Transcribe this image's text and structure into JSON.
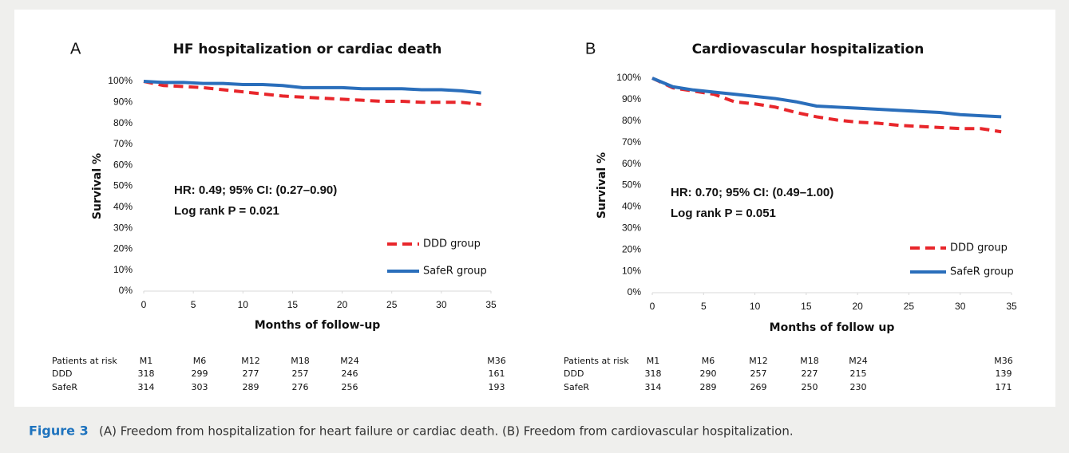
{
  "chart_data": [
    {
      "type": "line",
      "panel": "A",
      "title": "HF hospitalization or cardiac death",
      "xlabel": "Months of follow-up",
      "ylabel": "Survival %",
      "x": [
        0,
        2,
        4,
        6,
        8,
        10,
        12,
        14,
        16,
        18,
        20,
        22,
        24,
        26,
        28,
        30,
        32,
        34
      ],
      "series": [
        {
          "name": "DDD group",
          "color": "#e8262b",
          "linestyle": "dashed",
          "values": [
            100,
            98,
            97.5,
            97,
            96,
            95,
            94,
            93,
            92.5,
            92,
            91.5,
            91,
            90.5,
            90.5,
            90,
            90,
            90,
            89
          ]
        },
        {
          "name": "SafeR group",
          "color": "#2a6ebb",
          "linestyle": "solid",
          "values": [
            100,
            99.5,
            99.5,
            99,
            99,
            98.5,
            98.5,
            98,
            97,
            97,
            97,
            96.5,
            96.5,
            96.5,
            96,
            96,
            95.5,
            94.5
          ]
        }
      ],
      "xlim": [
        0,
        35
      ],
      "xticks": [
        0,
        5,
        10,
        15,
        20,
        25,
        30,
        35
      ],
      "ylim": [
        0,
        100
      ],
      "yticks": [
        {
          "value": 0,
          "label": "0%"
        },
        {
          "value": 10,
          "label": "10%"
        },
        {
          "value": 20,
          "label": "20%"
        },
        {
          "value": 30,
          "label": "30%"
        },
        {
          "value": 40,
          "label": "40%"
        },
        {
          "value": 50,
          "label": "50%"
        },
        {
          "value": 60,
          "label": "60%"
        },
        {
          "value": 70,
          "label": "70%"
        },
        {
          "value": 80,
          "label": "80%"
        },
        {
          "value": 90,
          "label": "90%"
        },
        {
          "value": 100,
          "label": "100%"
        }
      ],
      "legend": "lower right",
      "annotations": [
        "HR: 0.49; 95% CI: (0.27–0.90)",
        "Log rank P = 0.021"
      ],
      "risk_table": {
        "header": "Patients at risk",
        "columns": [
          "M1",
          "M6",
          "M12",
          "M18",
          "M24",
          "M36"
        ],
        "rows": [
          {
            "label": "DDD",
            "values": [
              318,
              299,
              277,
              257,
              246,
              161
            ]
          },
          {
            "label": "SafeR",
            "values": [
              314,
              303,
              289,
              276,
              256,
              193
            ]
          }
        ]
      }
    },
    {
      "type": "line",
      "panel": "B",
      "title": "Cardiovascular hospitalization",
      "xlabel": "Months of follow up",
      "ylabel": "Survival %",
      "x": [
        0,
        2,
        4,
        6,
        8,
        10,
        12,
        14,
        16,
        18,
        20,
        22,
        24,
        26,
        28,
        30,
        32,
        34
      ],
      "series": [
        {
          "name": "DDD group",
          "color": "#e8262b",
          "linestyle": "dashed",
          "values": [
            100,
            95.5,
            94,
            92.5,
            89,
            88,
            86.5,
            84,
            82,
            80.5,
            79.5,
            79,
            78,
            77.5,
            77,
            76.5,
            76.5,
            75
          ]
        },
        {
          "name": "SafeR group",
          "color": "#2a6ebb",
          "linestyle": "solid",
          "values": [
            100,
            96,
            94.5,
            93.5,
            92.5,
            91.5,
            90.5,
            89,
            87,
            86.5,
            86,
            85.5,
            85,
            84.5,
            84,
            83,
            82.5,
            82
          ]
        }
      ],
      "xlim": [
        0,
        35
      ],
      "xticks": [
        0,
        5,
        10,
        15,
        20,
        25,
        30,
        35
      ],
      "ylim": [
        0,
        100
      ],
      "yticks": [
        {
          "value": 0,
          "label": "0%"
        },
        {
          "value": 10,
          "label": "10%"
        },
        {
          "value": 20,
          "label": "20%"
        },
        {
          "value": 30,
          "label": "30%"
        },
        {
          "value": 40,
          "label": "40%"
        },
        {
          "value": 50,
          "label": "50%"
        },
        {
          "value": 60,
          "label": "60%"
        },
        {
          "value": 70,
          "label": "70%"
        },
        {
          "value": 80,
          "label": "80%"
        },
        {
          "value": 90,
          "label": "90%"
        },
        {
          "value": 100,
          "label": "100%"
        }
      ],
      "legend": "lower right",
      "annotations": [
        "HR: 0.70; 95% CI: (0.49–1.00)",
        "Log rank P = 0.051"
      ],
      "risk_table": {
        "header": "Patients at risk",
        "columns": [
          "M1",
          "M6",
          "M12",
          "M18",
          "M24",
          "M36"
        ],
        "rows": [
          {
            "label": "DDD",
            "values": [
              318,
              290,
              257,
              227,
              215,
              139
            ]
          },
          {
            "label": "SafeR",
            "values": [
              314,
              289,
              269,
              250,
              230,
              171
            ]
          }
        ]
      }
    }
  ],
  "caption": {
    "label": "Figure 3",
    "text": "(A) Freedom from hospitalization for heart failure or cardiac death. (B) Freedom from cardiovascular hospitalization."
  }
}
